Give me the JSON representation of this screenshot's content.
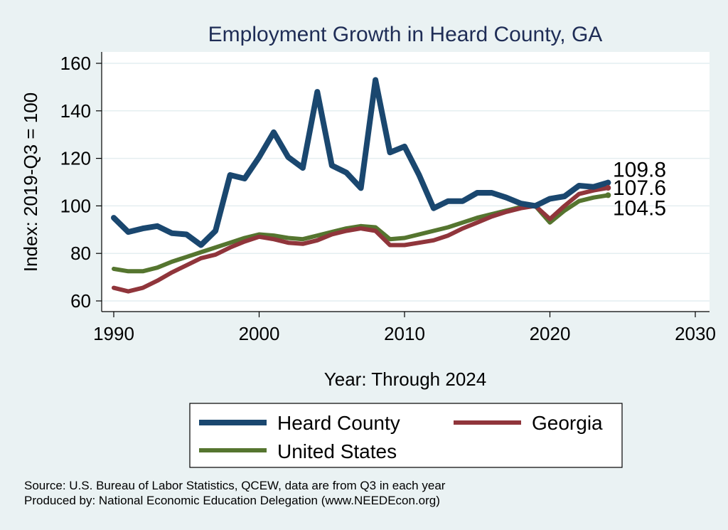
{
  "chart_data": {
    "type": "line",
    "title": "Employment Growth in Heard County, GA",
    "xlabel": "Year: Through 2024",
    "ylabel": "Index: 2019-Q3 = 100",
    "xlim": [
      1990,
      2030
    ],
    "ylim": [
      60,
      160
    ],
    "xticks": [
      1990,
      2000,
      2010,
      2020,
      2030
    ],
    "yticks": [
      60,
      80,
      100,
      120,
      140,
      160
    ],
    "grid": true,
    "legend_position": "bottom",
    "x": [
      1990,
      1991,
      1992,
      1993,
      1994,
      1995,
      1996,
      1997,
      1998,
      1999,
      2000,
      2001,
      2002,
      2003,
      2004,
      2005,
      2006,
      2007,
      2008,
      2009,
      2010,
      2011,
      2012,
      2013,
      2014,
      2015,
      2016,
      2017,
      2018,
      2019,
      2020,
      2021,
      2022,
      2023,
      2024
    ],
    "series": [
      {
        "name": "Heard  County",
        "color": "#1a476f",
        "values": [
          95,
          89,
          90.5,
          91.5,
          88.5,
          88,
          83.5,
          89.5,
          113,
          111.5,
          120.5,
          131,
          120.5,
          116,
          148,
          117,
          114,
          107.5,
          153,
          122.5,
          125,
          113,
          99,
          102,
          102,
          105.5,
          105.5,
          103.5,
          101,
          100,
          103,
          104,
          108.5,
          108,
          109.8
        ],
        "end_label": "109.8"
      },
      {
        "name": "Georgia",
        "color": "#90353b",
        "values": [
          65.5,
          64,
          65.5,
          68.5,
          72,
          75,
          78,
          79.5,
          82.5,
          85,
          87,
          86,
          84.5,
          84,
          85.5,
          88,
          89.5,
          90.5,
          89.5,
          83.5,
          83.5,
          84.5,
          85.5,
          87.5,
          90.5,
          93,
          95.5,
          97.5,
          99,
          100,
          94.5,
          100,
          105,
          106.5,
          107.6
        ],
        "end_label": "107.6"
      },
      {
        "name": "United States",
        "color": "#55752f",
        "values": [
          73.5,
          72.5,
          72.5,
          74,
          76.5,
          78.5,
          80.5,
          82.5,
          84.5,
          86.5,
          88,
          87.5,
          86.5,
          86,
          87.5,
          89,
          90.5,
          91.5,
          91,
          86,
          86.5,
          88,
          89.5,
          91,
          93,
          95,
          96.5,
          98,
          99.5,
          100,
          93,
          98,
          102,
          103.5,
          104.5
        ],
        "end_label": "104.5"
      }
    ]
  },
  "legend": {
    "items": [
      "Heard  County",
      "Georgia",
      "United States"
    ]
  },
  "source_lines": [
    "Source: U.S. Bureau of Labor Statistics, QCEW, data are from Q3 in each year",
    "Produced by: National Economic Education Delegation (www.NEEDEcon.org)"
  ]
}
